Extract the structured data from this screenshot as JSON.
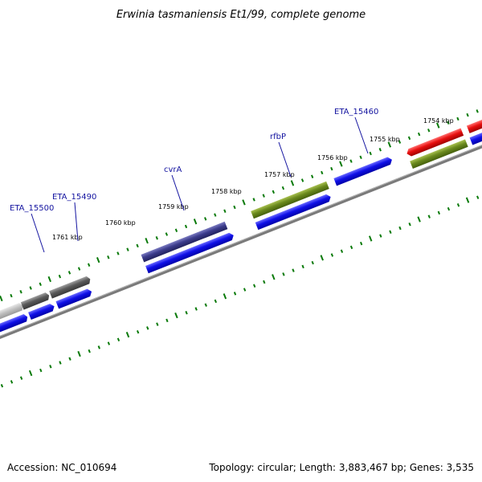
{
  "header": {
    "title": "Erwinia tasmaniensis Et1/99, complete genome"
  },
  "footer": {
    "accession": "Accession: NC_010694",
    "summary": "Topology: circular; Length: 3,883,467 bp; Genes: 3,535"
  },
  "colors": {
    "forward_cds": "#1010e8",
    "reverse_cds": "#e81010",
    "olive_cds": "#6b8a1e",
    "purple_cds": "#3c3c8c",
    "gray_cds": "#5a5a5a",
    "light_gray_cds": "#c0c0c0",
    "backbone": "#7a7a7a",
    "ticks": "#0a7a0a",
    "label_text": "#1414a0"
  },
  "scale": {
    "unit": "kbp",
    "tick_labels": [
      "1754 kbp",
      "1755 kbp",
      "1756 kbp",
      "1757 kbp",
      "1758 kbp",
      "1759 kbp",
      "1760 kbp",
      "1761 kbp"
    ]
  },
  "gene_labels": [
    "ETA_15460",
    "rfbP",
    "cvrA",
    "ETA_15490",
    "ETA_15500"
  ]
}
